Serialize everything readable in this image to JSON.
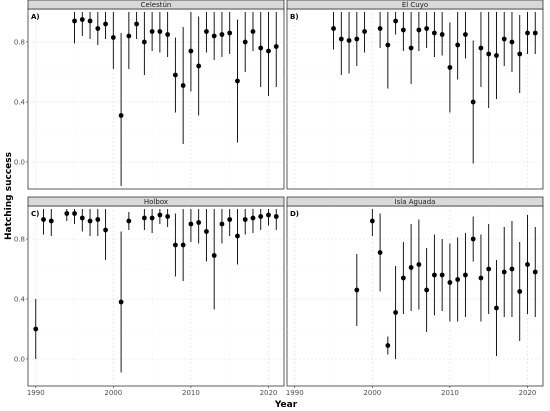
{
  "chart_data": {
    "type": "scatter",
    "xlabel": "Year",
    "ylabel": "Hatching success",
    "xlim": [
      1989,
      2022
    ],
    "ylim": [
      -0.18,
      1.02
    ],
    "x_ticks": [
      1990,
      2000,
      2010,
      2020
    ],
    "y_ticks": [
      0.0,
      0.4,
      0.8
    ],
    "y_tick_labels": [
      "0.0",
      "0.4",
      "0.8"
    ],
    "grid": true,
    "panels": [
      {
        "label": "A)",
        "strip": "Celestún",
        "points": [
          {
            "x": 1995,
            "y": 0.94,
            "lo": 0.79,
            "hi": 1.0
          },
          {
            "x": 1996,
            "y": 0.95,
            "lo": 0.84,
            "hi": 1.0
          },
          {
            "x": 1997,
            "y": 0.94,
            "lo": 0.82,
            "hi": 1.0
          },
          {
            "x": 1998,
            "y": 0.89,
            "lo": 0.78,
            "hi": 1.0
          },
          {
            "x": 1999,
            "y": 0.92,
            "lo": 0.82,
            "hi": 1.0
          },
          {
            "x": 2000,
            "y": 0.83,
            "lo": 0.62,
            "hi": 1.0
          },
          {
            "x": 2001,
            "y": 0.31,
            "lo": -0.16,
            "hi": 0.86
          },
          {
            "x": 2002,
            "y": 0.84,
            "lo": 0.62,
            "hi": 1.0
          },
          {
            "x": 2003,
            "y": 0.92,
            "lo": 0.82,
            "hi": 1.0
          },
          {
            "x": 2004,
            "y": 0.8,
            "lo": 0.58,
            "hi": 1.0
          },
          {
            "x": 2005,
            "y": 0.87,
            "lo": 0.74,
            "hi": 1.0
          },
          {
            "x": 2006,
            "y": 0.87,
            "lo": 0.73,
            "hi": 1.0
          },
          {
            "x": 2007,
            "y": 0.85,
            "lo": 0.7,
            "hi": 1.0
          },
          {
            "x": 2008,
            "y": 0.58,
            "lo": 0.33,
            "hi": 0.83
          },
          {
            "x": 2009,
            "y": 0.51,
            "lo": 0.12,
            "hi": 0.9
          },
          {
            "x": 2010,
            "y": 0.74,
            "lo": 0.47,
            "hi": 1.0
          },
          {
            "x": 2011,
            "y": 0.64,
            "lo": 0.31,
            "hi": 0.97
          },
          {
            "x": 2012,
            "y": 0.87,
            "lo": 0.73,
            "hi": 1.0
          },
          {
            "x": 2013,
            "y": 0.84,
            "lo": 0.68,
            "hi": 1.0
          },
          {
            "x": 2014,
            "y": 0.85,
            "lo": 0.7,
            "hi": 1.0
          },
          {
            "x": 2015,
            "y": 0.86,
            "lo": 0.72,
            "hi": 1.0
          },
          {
            "x": 2016,
            "y": 0.54,
            "lo": 0.13,
            "hi": 0.95
          },
          {
            "x": 2017,
            "y": 0.8,
            "lo": 0.6,
            "hi": 1.0
          },
          {
            "x": 2018,
            "y": 0.87,
            "lo": 0.74,
            "hi": 1.0
          },
          {
            "x": 2019,
            "y": 0.76,
            "lo": 0.5,
            "hi": 1.0
          },
          {
            "x": 2020,
            "y": 0.74,
            "lo": 0.44,
            "hi": 1.0
          },
          {
            "x": 2021,
            "y": 0.77,
            "lo": 0.5,
            "hi": 1.0
          }
        ]
      },
      {
        "label": "B)",
        "strip": "El Cuyo",
        "points": [
          {
            "x": 1995,
            "y": 0.89,
            "lo": 0.75,
            "hi": 1.0
          },
          {
            "x": 1996,
            "y": 0.82,
            "lo": 0.58,
            "hi": 1.0
          },
          {
            "x": 1997,
            "y": 0.81,
            "lo": 0.59,
            "hi": 1.0
          },
          {
            "x": 1998,
            "y": 0.82,
            "lo": 0.64,
            "hi": 1.0
          },
          {
            "x": 1999,
            "y": 0.87,
            "lo": 0.73,
            "hi": 1.0
          },
          {
            "x": 2001,
            "y": 0.89,
            "lo": 0.76,
            "hi": 1.0
          },
          {
            "x": 2002,
            "y": 0.78,
            "lo": 0.49,
            "hi": 1.0
          },
          {
            "x": 2003,
            "y": 0.94,
            "lo": 0.85,
            "hi": 1.0
          },
          {
            "x": 2004,
            "y": 0.88,
            "lo": 0.74,
            "hi": 1.0
          },
          {
            "x": 2005,
            "y": 0.76,
            "lo": 0.52,
            "hi": 1.0
          },
          {
            "x": 2006,
            "y": 0.88,
            "lo": 0.74,
            "hi": 1.0
          },
          {
            "x": 2007,
            "y": 0.89,
            "lo": 0.76,
            "hi": 1.0
          },
          {
            "x": 2008,
            "y": 0.86,
            "lo": 0.7,
            "hi": 1.0
          },
          {
            "x": 2009,
            "y": 0.85,
            "lo": 0.71,
            "hi": 1.0
          },
          {
            "x": 2010,
            "y": 0.63,
            "lo": 0.33,
            "hi": 0.93
          },
          {
            "x": 2011,
            "y": 0.78,
            "lo": 0.55,
            "hi": 1.0
          },
          {
            "x": 2012,
            "y": 0.85,
            "lo": 0.69,
            "hi": 1.0
          },
          {
            "x": 2013,
            "y": 0.4,
            "lo": -0.01,
            "hi": 0.81
          },
          {
            "x": 2014,
            "y": 0.76,
            "lo": 0.5,
            "hi": 1.0
          },
          {
            "x": 2015,
            "y": 0.72,
            "lo": 0.36,
            "hi": 1.0
          },
          {
            "x": 2016,
            "y": 0.71,
            "lo": 0.42,
            "hi": 1.0
          },
          {
            "x": 2017,
            "y": 0.82,
            "lo": 0.64,
            "hi": 1.0
          },
          {
            "x": 2018,
            "y": 0.8,
            "lo": 0.6,
            "hi": 1.0
          },
          {
            "x": 2019,
            "y": 0.72,
            "lo": 0.46,
            "hi": 0.98
          },
          {
            "x": 2020,
            "y": 0.86,
            "lo": 0.72,
            "hi": 1.0
          },
          {
            "x": 2021,
            "y": 0.86,
            "lo": 0.72,
            "hi": 1.0
          }
        ]
      },
      {
        "label": "C)",
        "strip": "Holbox",
        "points": [
          {
            "x": 1990,
            "y": 0.2,
            "lo": 0.0,
            "hi": 0.4
          },
          {
            "x": 1991,
            "y": 0.93,
            "lo": 0.83,
            "hi": 1.0
          },
          {
            "x": 1992,
            "y": 0.92,
            "lo": 0.82,
            "hi": 1.0
          },
          {
            "x": 1994,
            "y": 0.97,
            "lo": 0.92,
            "hi": 1.0
          },
          {
            "x": 1995,
            "y": 0.97,
            "lo": 0.9,
            "hi": 1.0
          },
          {
            "x": 1996,
            "y": 0.94,
            "lo": 0.85,
            "hi": 1.0
          },
          {
            "x": 1997,
            "y": 0.92,
            "lo": 0.82,
            "hi": 1.0
          },
          {
            "x": 1998,
            "y": 0.93,
            "lo": 0.82,
            "hi": 1.0
          },
          {
            "x": 1999,
            "y": 0.86,
            "lo": 0.66,
            "hi": 1.0
          },
          {
            "x": 2001,
            "y": 0.38,
            "lo": -0.09,
            "hi": 0.85
          },
          {
            "x": 2002,
            "y": 0.92,
            "lo": 0.86,
            "hi": 0.98
          },
          {
            "x": 2004,
            "y": 0.94,
            "lo": 0.86,
            "hi": 1.0
          },
          {
            "x": 2005,
            "y": 0.94,
            "lo": 0.84,
            "hi": 1.0
          },
          {
            "x": 2006,
            "y": 0.96,
            "lo": 0.9,
            "hi": 1.0
          },
          {
            "x": 2007,
            "y": 0.95,
            "lo": 0.88,
            "hi": 1.0
          },
          {
            "x": 2008,
            "y": 0.76,
            "lo": 0.55,
            "hi": 0.97
          },
          {
            "x": 2009,
            "y": 0.76,
            "lo": 0.52,
            "hi": 1.0
          },
          {
            "x": 2010,
            "y": 0.9,
            "lo": 0.78,
            "hi": 1.0
          },
          {
            "x": 2011,
            "y": 0.91,
            "lo": 0.77,
            "hi": 1.0
          },
          {
            "x": 2012,
            "y": 0.85,
            "lo": 0.65,
            "hi": 1.0
          },
          {
            "x": 2013,
            "y": 0.69,
            "lo": 0.33,
            "hi": 1.0
          },
          {
            "x": 2014,
            "y": 0.9,
            "lo": 0.77,
            "hi": 1.0
          },
          {
            "x": 2015,
            "y": 0.93,
            "lo": 0.82,
            "hi": 1.0
          },
          {
            "x": 2016,
            "y": 0.82,
            "lo": 0.63,
            "hi": 1.0
          },
          {
            "x": 2017,
            "y": 0.93,
            "lo": 0.83,
            "hi": 1.0
          },
          {
            "x": 2018,
            "y": 0.94,
            "lo": 0.84,
            "hi": 1.0
          },
          {
            "x": 2019,
            "y": 0.95,
            "lo": 0.86,
            "hi": 1.0
          },
          {
            "x": 2020,
            "y": 0.96,
            "lo": 0.89,
            "hi": 1.0
          },
          {
            "x": 2021,
            "y": 0.95,
            "lo": 0.86,
            "hi": 1.0
          }
        ]
      },
      {
        "label": "D)",
        "strip": "Isla Aguada",
        "points": [
          {
            "x": 1998,
            "y": 0.46,
            "lo": 0.22,
            "hi": 0.7
          },
          {
            "x": 2000,
            "y": 0.92,
            "lo": 0.82,
            "hi": 1.0
          },
          {
            "x": 2001,
            "y": 0.71,
            "lo": 0.45,
            "hi": 0.97
          },
          {
            "x": 2002,
            "y": 0.09,
            "lo": 0.03,
            "hi": 0.15
          },
          {
            "x": 2003,
            "y": 0.31,
            "lo": 0.0,
            "hi": 0.62
          },
          {
            "x": 2004,
            "y": 0.54,
            "lo": 0.3,
            "hi": 0.78
          },
          {
            "x": 2005,
            "y": 0.61,
            "lo": 0.32,
            "hi": 0.9
          },
          {
            "x": 2006,
            "y": 0.63,
            "lo": 0.33,
            "hi": 0.93
          },
          {
            "x": 2007,
            "y": 0.46,
            "lo": 0.18,
            "hi": 0.74
          },
          {
            "x": 2008,
            "y": 0.56,
            "lo": 0.29,
            "hi": 0.83
          },
          {
            "x": 2009,
            "y": 0.56,
            "lo": 0.32,
            "hi": 0.8
          },
          {
            "x": 2010,
            "y": 0.51,
            "lo": 0.25,
            "hi": 0.77
          },
          {
            "x": 2011,
            "y": 0.53,
            "lo": 0.25,
            "hi": 0.81
          },
          {
            "x": 2012,
            "y": 0.56,
            "lo": 0.28,
            "hi": 0.84
          },
          {
            "x": 2013,
            "y": 0.8,
            "lo": 0.65,
            "hi": 0.95
          },
          {
            "x": 2014,
            "y": 0.54,
            "lo": 0.25,
            "hi": 0.83
          },
          {
            "x": 2015,
            "y": 0.6,
            "lo": 0.3,
            "hi": 0.9
          },
          {
            "x": 2016,
            "y": 0.34,
            "lo": 0.02,
            "hi": 0.66
          },
          {
            "x": 2017,
            "y": 0.58,
            "lo": 0.28,
            "hi": 0.88
          },
          {
            "x": 2018,
            "y": 0.6,
            "lo": 0.28,
            "hi": 0.92
          },
          {
            "x": 2019,
            "y": 0.45,
            "lo": 0.12,
            "hi": 0.78
          },
          {
            "x": 2020,
            "y": 0.63,
            "lo": 0.3,
            "hi": 0.96
          },
          {
            "x": 2021,
            "y": 0.58,
            "lo": 0.28,
            "hi": 0.88
          }
        ]
      }
    ]
  }
}
